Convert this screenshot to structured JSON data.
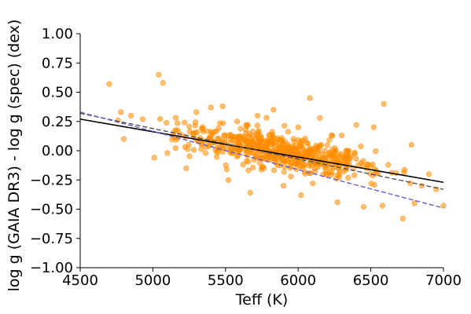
{
  "chart_data": {
    "type": "scatter",
    "xlabel": "Teff (K)",
    "ylabel": "log g (GAIA DR3) - log g (spec) (dex)",
    "xlim": [
      4500,
      7000
    ],
    "ylim": [
      -1.0,
      1.0
    ],
    "x_ticks": [
      4500,
      5000,
      5500,
      6000,
      6500,
      7000
    ],
    "y_ticks": [
      -1.0,
      -0.75,
      -0.5,
      -0.25,
      0.0,
      0.25,
      0.5,
      0.75,
      1.0
    ],
    "x_tick_labels": [
      "4500",
      "5000",
      "5500",
      "6000",
      "6500",
      "7000"
    ],
    "y_tick_labels": [
      "−1.00",
      "−0.75",
      "−0.50",
      "−0.25",
      "0.00",
      "0.25",
      "0.50",
      "0.75",
      "1.00"
    ],
    "grid": false,
    "colors": {
      "points": "#ff8c00",
      "fit_solid": "#000000",
      "fit_dashed_gray": "#555555",
      "fit_dashed_blue": "#6a5acd"
    },
    "lines": [
      {
        "style": "solid",
        "color": "#000000",
        "x": [
          4500,
          7000
        ],
        "y": [
          0.27,
          -0.27
        ]
      },
      {
        "style": "dashed",
        "color": "#555555",
        "x": [
          4500,
          7000
        ],
        "y": [
          0.32,
          -0.33
        ]
      },
      {
        "style": "dashed",
        "color": "#6a5acd",
        "x": [
          4500,
          7000
        ],
        "y": [
          0.33,
          -0.49
        ]
      }
    ],
    "outliers": [
      {
        "x": 4700,
        "y": 0.57
      },
      {
        "x": 5040,
        "y": 0.65
      },
      {
        "x": 5070,
        "y": 0.58
      },
      {
        "x": 6080,
        "y": 0.45
      },
      {
        "x": 6590,
        "y": 0.4
      },
      {
        "x": 6780,
        "y": 0.05
      },
      {
        "x": 7000,
        "y": -0.47
      },
      {
        "x": 6720,
        "y": -0.58
      },
      {
        "x": 6450,
        "y": -0.48
      },
      {
        "x": 6580,
        "y": -0.47
      },
      {
        "x": 6270,
        "y": -0.44
      },
      {
        "x": 5670,
        "y": -0.36
      },
      {
        "x": 5010,
        "y": -0.06
      },
      {
        "x": 4780,
        "y": 0.33
      },
      {
        "x": 4800,
        "y": 0.1
      },
      {
        "x": 5400,
        "y": 0.37
      },
      {
        "x": 5480,
        "y": 0.38
      },
      {
        "x": 5830,
        "y": 0.35
      },
      {
        "x": 5720,
        "y": 0.3
      },
      {
        "x": 6150,
        "y": 0.28
      },
      {
        "x": 6400,
        "y": 0.22
      },
      {
        "x": 6520,
        "y": 0.2
      },
      {
        "x": 6850,
        "y": -0.3
      },
      {
        "x": 6950,
        "y": -0.33
      },
      {
        "x": 6800,
        "y": -0.45
      },
      {
        "x": 5230,
        "y": -0.15
      },
      {
        "x": 5520,
        "y": -0.25
      },
      {
        "x": 5900,
        "y": -0.3
      },
      {
        "x": 6020,
        "y": -0.38
      },
      {
        "x": 6100,
        "y": -0.28
      },
      {
        "x": 5580,
        "y": 0.25
      },
      {
        "x": 6000,
        "y": 0.2
      },
      {
        "x": 5300,
        "y": 0.33
      },
      {
        "x": 4850,
        "y": 0.3
      },
      {
        "x": 4930,
        "y": 0.27
      },
      {
        "x": 5950,
        "y": -0.22
      },
      {
        "x": 6300,
        "y": 0.13
      },
      {
        "x": 6620,
        "y": -0.12
      },
      {
        "x": 6900,
        "y": -0.2
      },
      {
        "x": 5150,
        "y": 0.17
      },
      {
        "x": 5100,
        "y": -0.02
      },
      {
        "x": 4760,
        "y": 0.26
      }
    ],
    "cluster": {
      "count": 600,
      "x_range": [
        4800,
        6900
      ],
      "x_peak": 5850,
      "slope_per_K": -0.000216,
      "y_at_peak": 0.0,
      "spread": 0.07
    }
  }
}
